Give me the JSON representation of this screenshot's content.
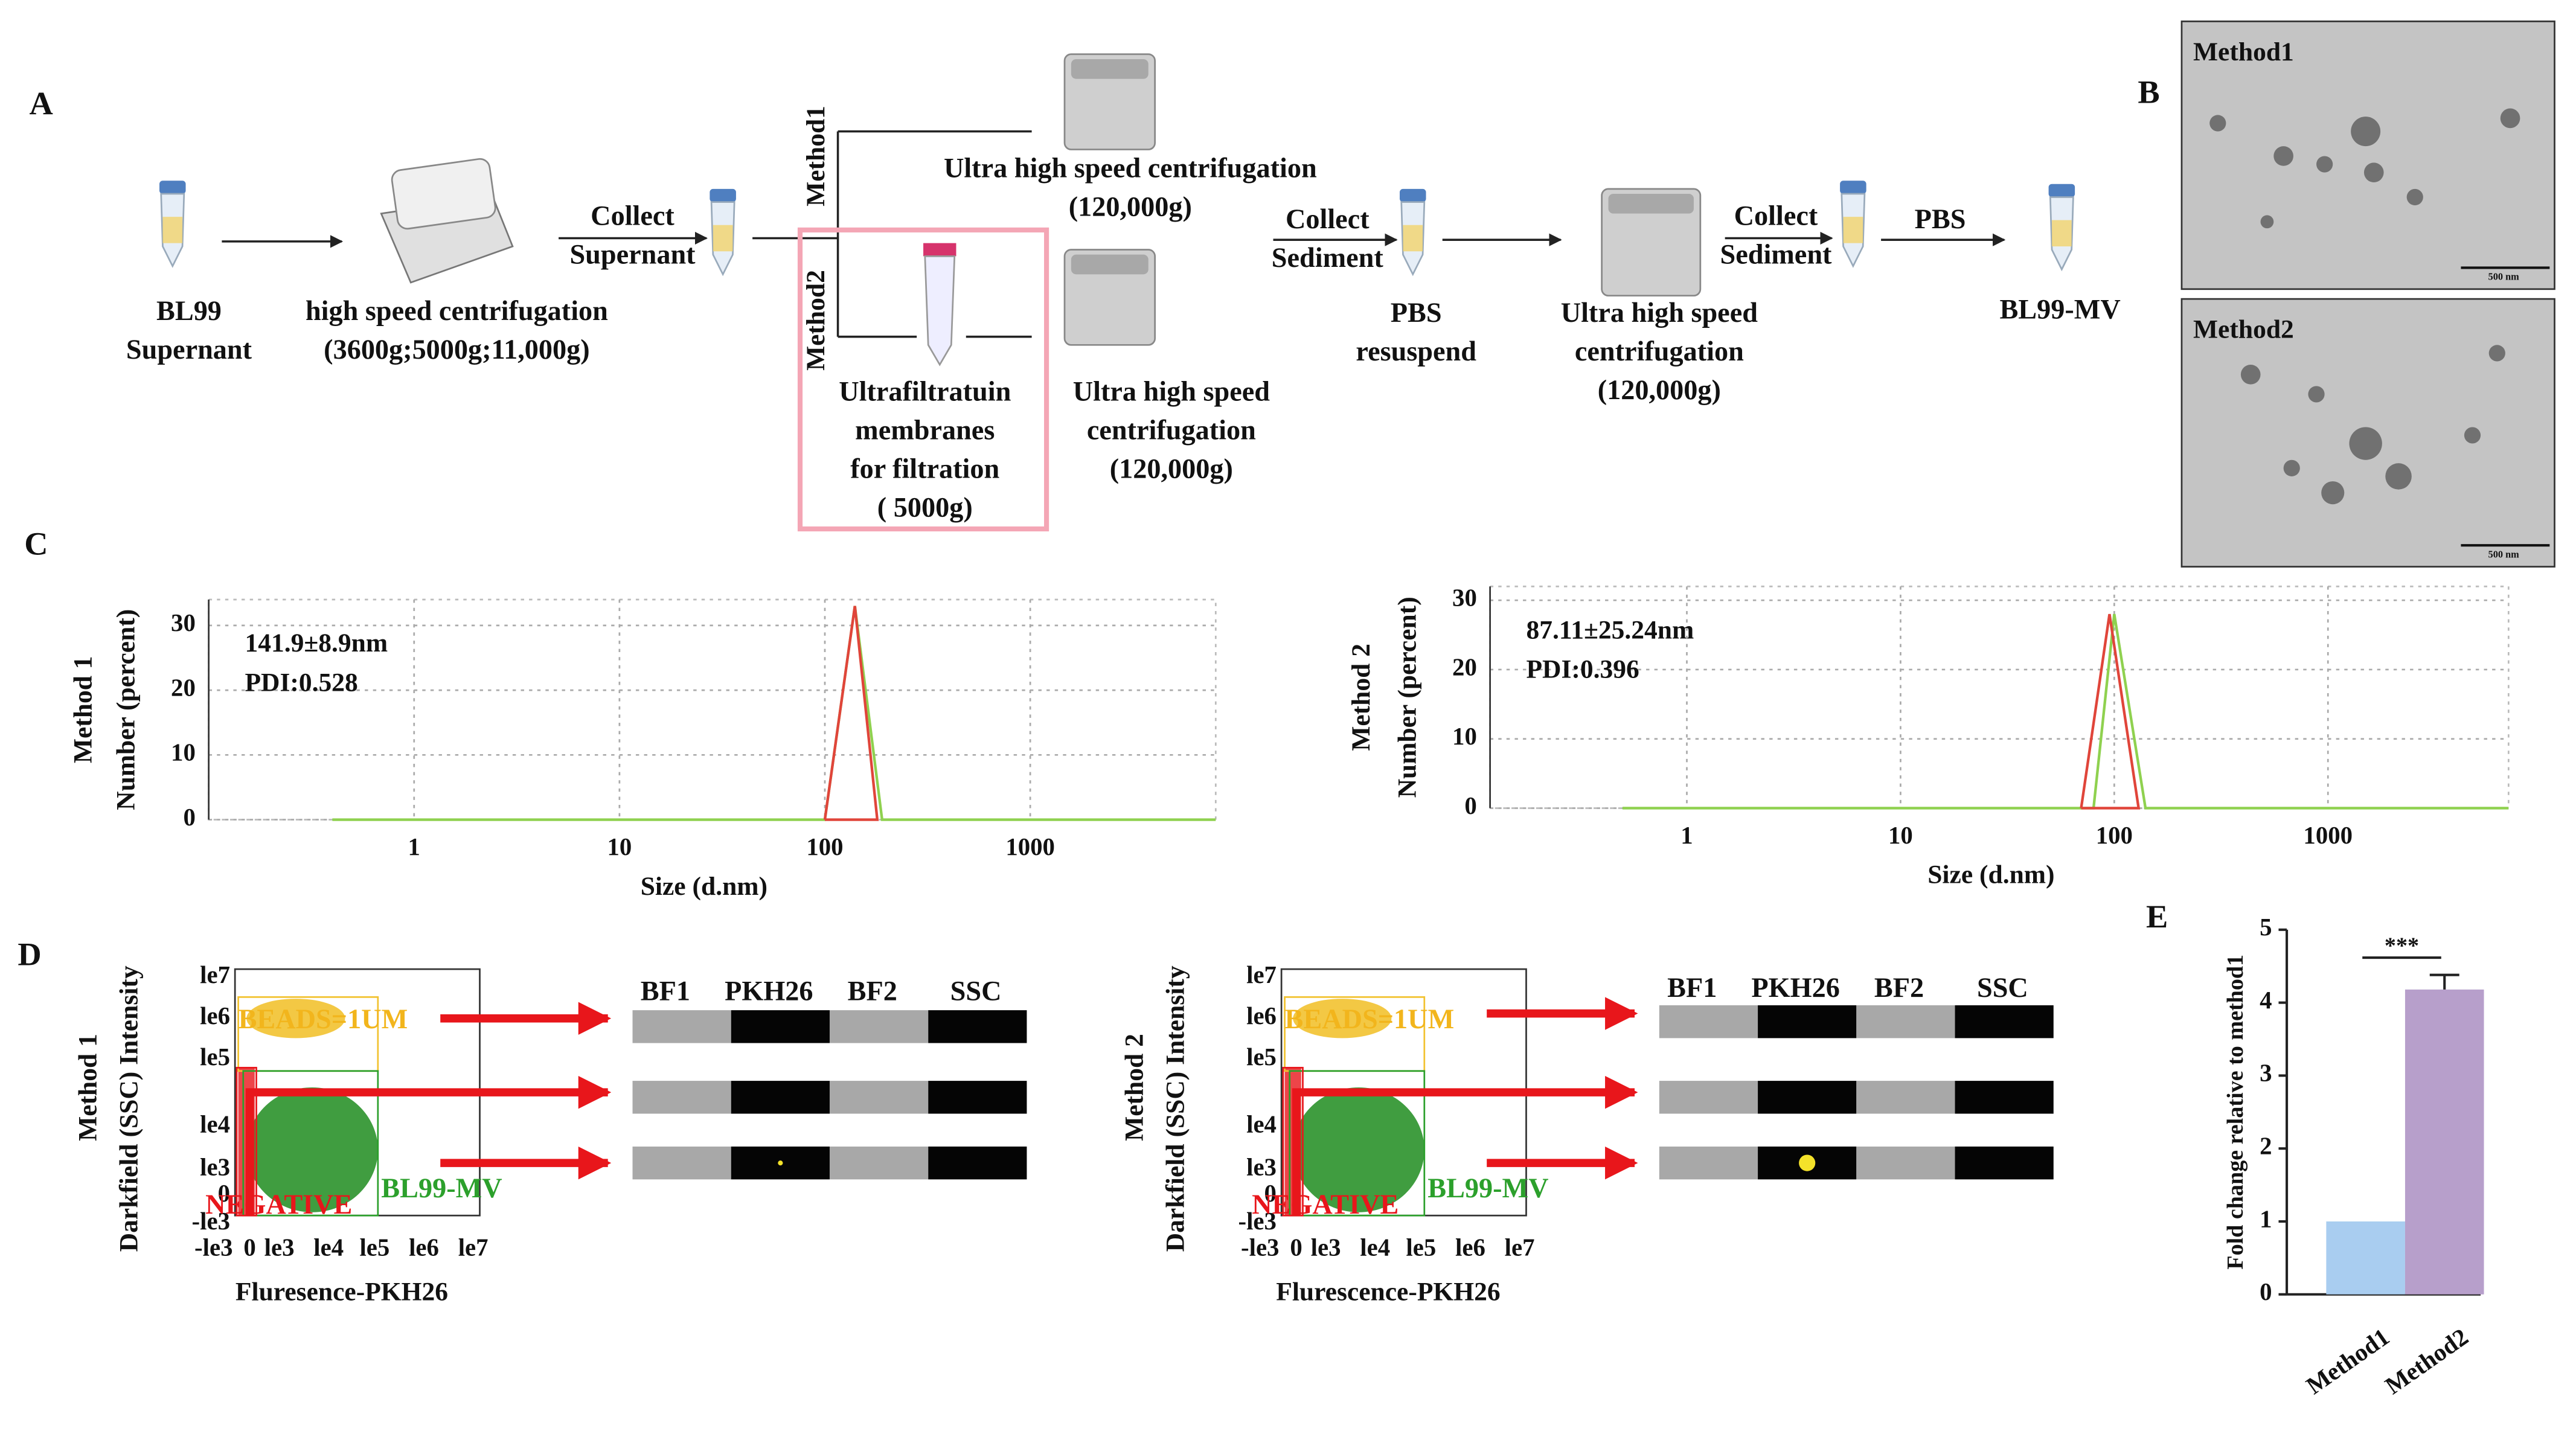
{
  "panel_labels": [
    "A",
    "B",
    "C",
    "D",
    "E"
  ],
  "workflow": {
    "steps": [
      {
        "lines": [
          "BL99",
          "Supernant"
        ]
      },
      {
        "lines": [
          "high speed centrifugation",
          "(3600g;5000g;11,000g)"
        ]
      },
      {
        "lines": [
          "Collect",
          "Supernant"
        ]
      },
      {
        "lines": [
          "Ultra high speed centrifugation",
          "(120,000g)"
        ]
      },
      {
        "lines": [
          "Ultrafiltratuin",
          "membranes",
          "for filtration",
          "( 5000g)"
        ]
      },
      {
        "lines": [
          "Ultra high speed",
          "centrifugation",
          "(120,000g)"
        ]
      },
      {
        "lines": [
          "Collect",
          "Sediment"
        ]
      },
      {
        "lines": [
          "PBS",
          "resuspend"
        ]
      },
      {
        "lines": [
          "Ultra high speed",
          "centrifugation",
          "(120,000g)"
        ]
      },
      {
        "lines": [
          "Collect",
          "Sediment"
        ]
      },
      {
        "lines": [
          "PBS"
        ]
      },
      {
        "lines": [
          "BL99-MV"
        ]
      }
    ],
    "branches": [
      "Method1",
      "Method2"
    ]
  },
  "tem": {
    "labels": [
      "Method1",
      "Method2"
    ],
    "scale_bar": "500 nm"
  },
  "chart_data": [
    {
      "type": "line",
      "panel_title": "Method 1",
      "ylabel": "Number (percent)",
      "xlabel": "Size (d.nm)",
      "log_x": true,
      "xlim": [
        0.1,
        8000
      ],
      "ylim": [
        0,
        34
      ],
      "xticks": [
        1,
        10,
        100,
        1000
      ],
      "yticks": [
        0,
        10,
        20,
        30
      ],
      "grid": true,
      "annotations": [
        "141.9±8.9nm",
        "PDI:0.528"
      ],
      "series": [
        {
          "color": "#8fd14f",
          "x": [
            0.4,
            100,
            140,
            190,
            8000
          ],
          "values": [
            0,
            0,
            33,
            0,
            0
          ]
        },
        {
          "color": "#e0453a",
          "x": [
            100,
            140,
            180,
            100
          ],
          "values": [
            0,
            33,
            0,
            0
          ]
        }
      ]
    },
    {
      "type": "line",
      "panel_title": "Method 2",
      "ylabel": "Number (percent)",
      "xlabel": "Size (d.nm)",
      "log_x": true,
      "xlim": [
        0.12,
        7000
      ],
      "ylim": [
        0,
        32
      ],
      "xticks": [
        1,
        10,
        100,
        1000
      ],
      "yticks": [
        0,
        10,
        20,
        30
      ],
      "grid": true,
      "annotations": [
        "87.11±25.24nm",
        "PDI:0.396"
      ],
      "series": [
        {
          "color": "#8fd14f",
          "x": [
            0.5,
            80,
            100,
            140,
            7000
          ],
          "values": [
            0,
            0,
            28,
            0,
            0
          ]
        },
        {
          "color": "#e0453a",
          "x": [
            70,
            95,
            130,
            70
          ],
          "values": [
            0,
            28,
            0,
            0
          ]
        }
      ]
    },
    {
      "type": "bar",
      "ylabel": "Fold change relative to method1",
      "categories": [
        "Method1",
        "Method2"
      ],
      "values": [
        1,
        4.18
      ],
      "errors": [
        null,
        0.2
      ],
      "colors": [
        "#a9cdf0",
        "#b79fcb"
      ],
      "ylim": [
        0,
        5
      ],
      "yticks": [
        0,
        1,
        2,
        3,
        4,
        5
      ],
      "annotations": [
        "***"
      ]
    }
  ],
  "flow": [
    {
      "method": "Method 1",
      "y_label": "Darkfield (SSC) Intensity",
      "x_label": "Fluresence-PKH26",
      "y_ticks": [
        "le7",
        "le6",
        "le5",
        "le4",
        "le3",
        "0",
        "-le3"
      ],
      "x_ticks": [
        "-le3",
        "0",
        "le3",
        "le4",
        "le5",
        "le6",
        "le7"
      ],
      "gates": [
        "BEADS=1UM",
        "NEGATIVE",
        "BL99-MV"
      ],
      "channels": [
        "BF1",
        "PKH26",
        "BF2",
        "SSC"
      ]
    },
    {
      "method": "Method 2",
      "y_label": "Darkfield (SSC) Intensity",
      "x_label": "Flurescence-PKH26",
      "y_ticks": [
        "le7",
        "le6",
        "le5",
        "le4",
        "le3",
        "0",
        "-le3"
      ],
      "x_ticks": [
        "-le3",
        "0",
        "le3",
        "le4",
        "le5",
        "le6",
        "le7"
      ],
      "gates": [
        "BEADS=1UM",
        "NEGATIVE",
        "BL99-MV"
      ],
      "channels": [
        "BF1",
        "PKH26",
        "BF2",
        "SSC"
      ]
    }
  ]
}
